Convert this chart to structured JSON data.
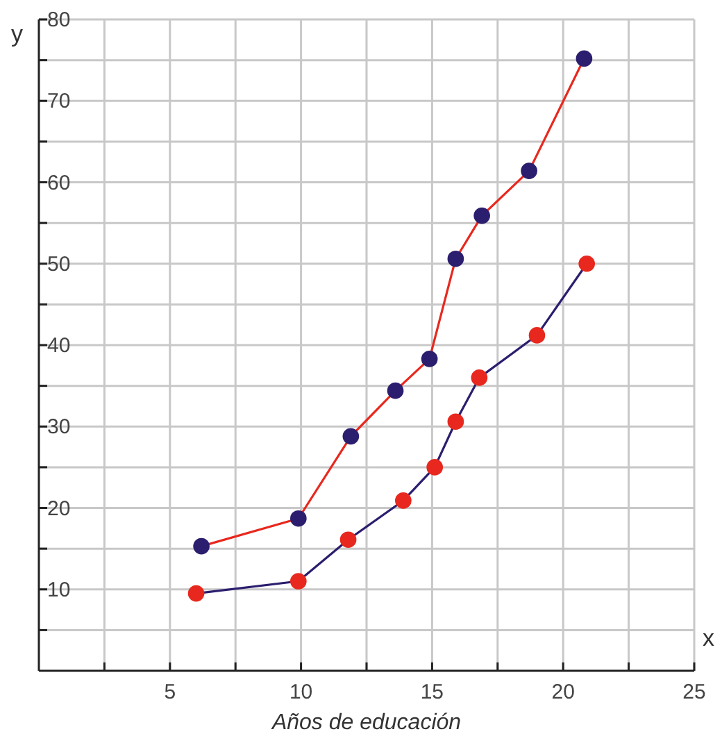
{
  "chart_data": {
    "type": "line",
    "xlabel": "Años de educación",
    "ylabel": "y",
    "annotations": [
      "x"
    ],
    "xlim": [
      0,
      25
    ],
    "ylim": [
      0,
      80
    ],
    "xticks": [
      {
        "value": 2.5,
        "label": null
      },
      5,
      {
        "value": 7.5,
        "label": null
      },
      10,
      {
        "value": 12.5,
        "label": null
      },
      15,
      {
        "value": 17.5,
        "label": null
      },
      20,
      {
        "value": 22.5,
        "label": null
      },
      25
    ],
    "yticks": [
      {
        "value": 5,
        "label": null
      },
      10,
      {
        "value": 15,
        "label": null
      },
      20,
      {
        "value": 25,
        "label": null
      },
      30,
      {
        "value": 35,
        "label": null
      },
      40,
      {
        "value": 45,
        "label": null
      },
      50,
      {
        "value": 55,
        "label": null
      },
      60,
      {
        "value": 65,
        "label": null
      },
      70,
      {
        "value": 75,
        "label": null
      },
      80
    ],
    "grid": true,
    "marker": "circle",
    "line_style": "solid",
    "series": [
      {
        "color": "#e8281e",
        "colors": [
          "#2b1e6e",
          "#2b1e6e",
          "#2b1e6e",
          "#2b1e6e",
          "#2b1e6e",
          "#2b1e6e",
          "#2b1e6e",
          "#2b1e6e",
          "#2b1e6e"
        ],
        "x": [
          6.2,
          9.9,
          11.9,
          13.6,
          14.9,
          15.9,
          16.9,
          18.7,
          20.8
        ],
        "values": [
          15.3,
          18.7,
          28.8,
          34.4,
          38.3,
          50.6,
          55.9,
          61.4,
          75.2
        ]
      },
      {
        "color": "#2b1e6e",
        "colors": [
          "#e8281e",
          "#e8281e",
          "#e8281e",
          "#e8281e",
          "#e8281e",
          "#e8281e",
          "#e8281e",
          "#e8281e",
          "#e8281e"
        ],
        "x": [
          6.0,
          9.9,
          11.8,
          13.9,
          15.1,
          15.9,
          16.8,
          19.0,
          20.9
        ],
        "values": [
          9.5,
          11.0,
          16.1,
          20.9,
          25.0,
          30.6,
          36.0,
          41.2,
          50.0
        ]
      }
    ]
  }
}
